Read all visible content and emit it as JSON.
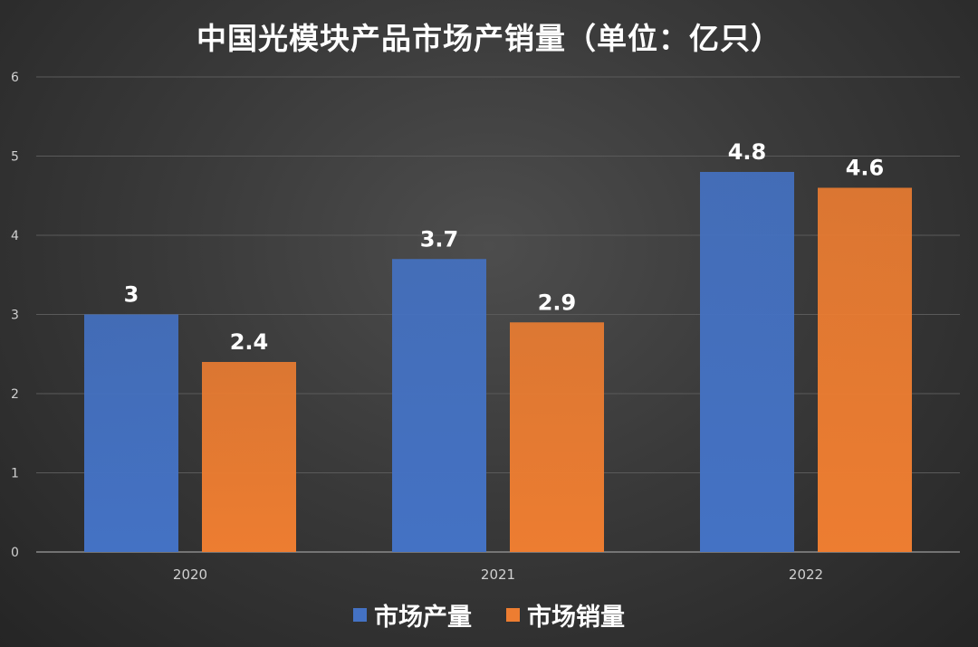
{
  "colors": {
    "series_1": "#4472C4",
    "series_2": "#ED7D31",
    "grid": "#5a5a5a",
    "axis_text": "#d0d0d0",
    "data_label": "#ffffff"
  },
  "chart_data": {
    "type": "bar",
    "title": "中国光模块产品市场产销量（单位：亿只）",
    "xlabel": "",
    "ylabel": "",
    "categories": [
      "2020",
      "2021",
      "2022"
    ],
    "series": [
      {
        "name": "市场产量",
        "values": [
          3,
          3.7,
          4.8
        ]
      },
      {
        "name": "市场销量",
        "values": [
          2.4,
          2.9,
          4.6
        ]
      }
    ],
    "ylim": [
      0,
      6
    ],
    "yticks": [
      "0",
      "1",
      "2",
      "3",
      "4",
      "5",
      "6"
    ],
    "grid": true,
    "legend_position": "bottom"
  }
}
